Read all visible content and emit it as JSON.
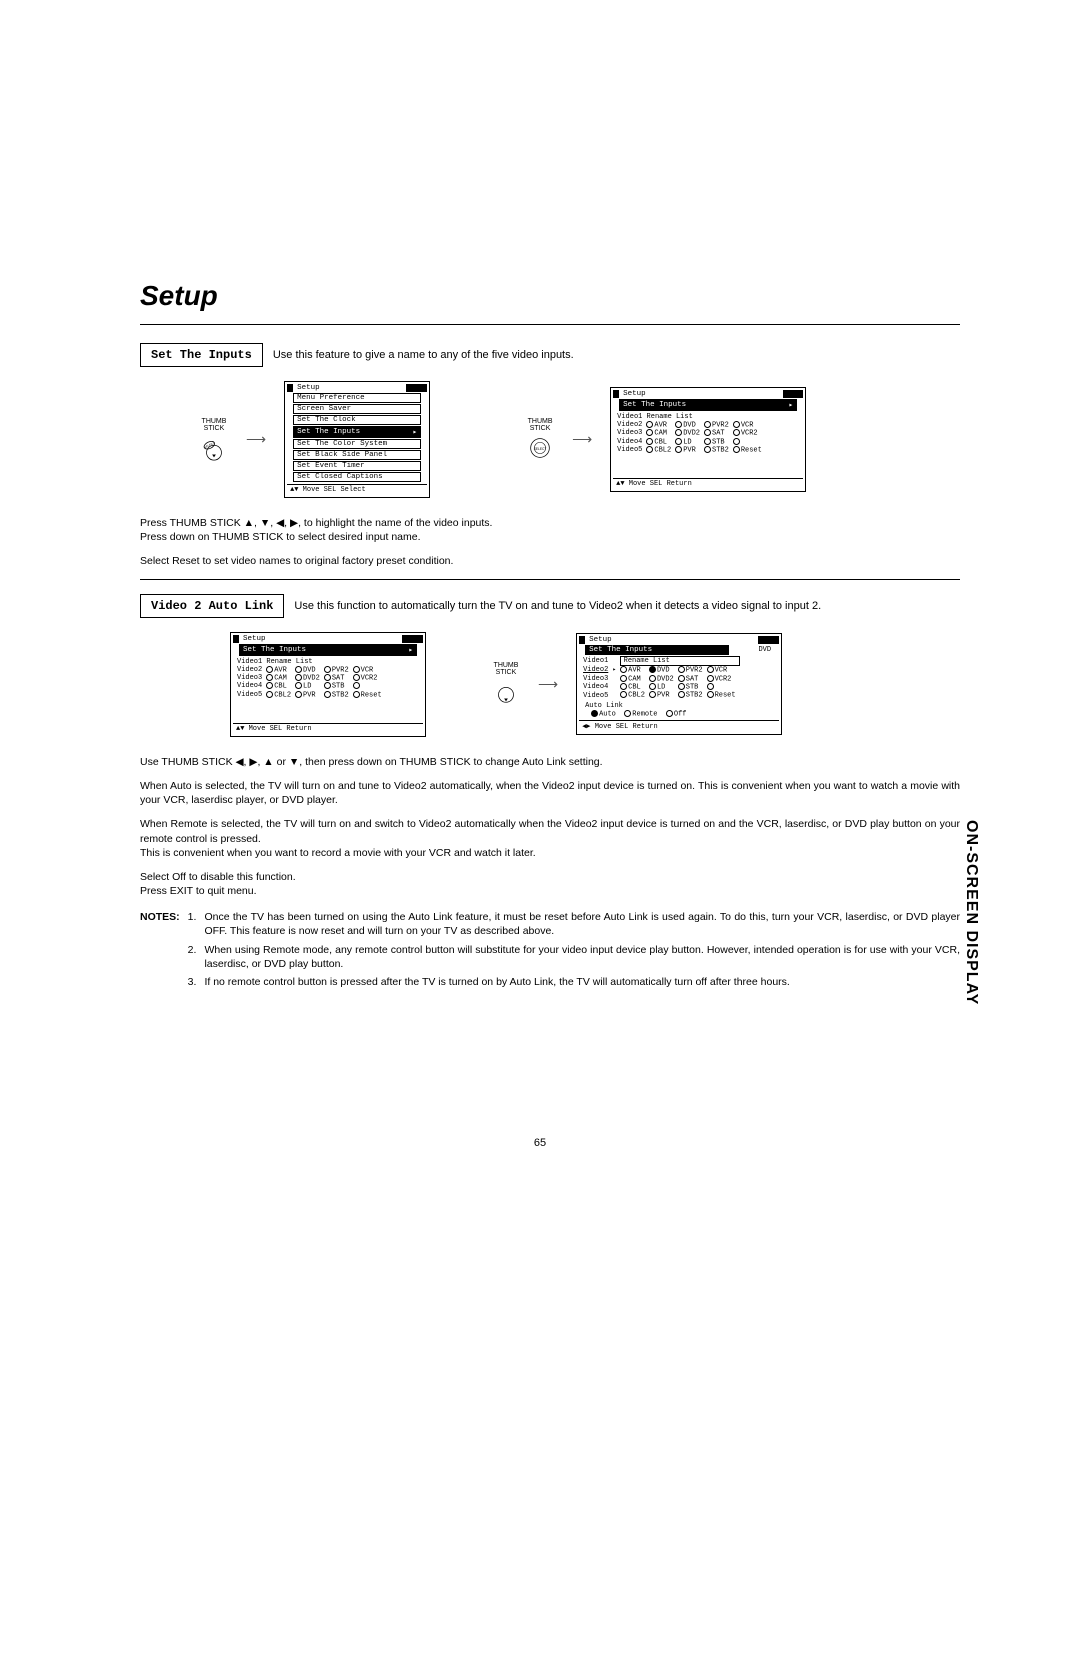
{
  "page_title": "Setup",
  "side_tab": "ON-SCREEN DISPLAY",
  "page_number": "65",
  "thumb_label": "THUMB\nSTICK",
  "arrow_glyph": "→",
  "features": {
    "set_inputs": {
      "box_label": "Set The Inputs",
      "desc": "Use this feature to give a name to any of the five video inputs."
    },
    "auto_link": {
      "box_label": "Video 2 Auto Link",
      "desc": "Use this function to automatically turn the TV on and tune to Video2 when it detects a video signal to input 2."
    }
  },
  "osd_setup_menu": {
    "title": "Setup",
    "items": [
      "Menu Preference",
      "Screen Saver",
      "Set The Clock",
      "Set The Inputs",
      "Set The Color System",
      "Set Black Side Panel",
      "Set Event Timer",
      "Set Closed Captions"
    ],
    "selected_index": 3,
    "footer": "▲▼ Move  SEL Select"
  },
  "osd_rename1": {
    "title": "Setup",
    "subtitle": "Set The Inputs",
    "header": "Video1 Rename List",
    "rows": [
      {
        "label": "Video2",
        "opts": [
          "AVR",
          "DVD",
          "PVR2",
          "VCR"
        ]
      },
      {
        "label": "Video3",
        "opts": [
          "CAM",
          "DVD2",
          "SAT",
          "VCR2"
        ]
      },
      {
        "label": "Video4",
        "opts": [
          "CBL",
          "LD",
          "STB",
          ""
        ]
      },
      {
        "label": "Video5",
        "opts": [
          "CBL2",
          "PVR",
          "STB2",
          "Reset"
        ]
      }
    ],
    "footer": "▲▼ Move  SEL Return"
  },
  "osd_rename2": {
    "title": "Setup",
    "subtitle": "Set The Inputs",
    "header": "Video1 Rename List",
    "rows": [
      {
        "label": "Video2",
        "opts": [
          "AVR",
          "DVD",
          "PVR2",
          "VCR"
        ]
      },
      {
        "label": "Video3",
        "opts": [
          "CAM",
          "DVD2",
          "SAT",
          "VCR2"
        ]
      },
      {
        "label": "Video4",
        "opts": [
          "CBL",
          "LD",
          "STB",
          ""
        ]
      },
      {
        "label": "Video5",
        "opts": [
          "CBL2",
          "PVR",
          "STB2",
          "Reset"
        ]
      }
    ],
    "footer": "▲▼ Move  SEL Return"
  },
  "osd_autolink": {
    "title": "Setup",
    "subtitle": "Set The Inputs",
    "subtitle_right": "DVD",
    "header_left": "Video1",
    "header_box": "Rename List",
    "hl_row": "Video2",
    "hl_selected": "DVD",
    "rows": [
      {
        "label": "Video2",
        "opts": [
          "AVR",
          "DVD",
          "PVR2",
          "VCR"
        ],
        "sel": 1
      },
      {
        "label": "Video3",
        "opts": [
          "CAM",
          "DVD2",
          "SAT",
          "VCR2"
        ]
      },
      {
        "label": "Video4",
        "opts": [
          "CBL",
          "LD",
          "STB",
          ""
        ]
      },
      {
        "label": "Video5",
        "opts": [
          "CBL2",
          "PVR",
          "STB2",
          "Reset"
        ]
      }
    ],
    "autolink_label": "Auto Link",
    "autolink_opts": [
      "Auto",
      "Remote",
      "Off"
    ],
    "autolink_sel": 0,
    "footer": "◀▶ Move  SEL Return"
  },
  "paragraphs": {
    "p1": "Press THUMB STICK ▲, ▼, ◀, ▶, to highlight the name of the video inputs.\nPress down on THUMB STICK to select desired input name.",
    "p2": "Select Reset to set video names to original factory preset condition.",
    "p3": "Use THUMB STICK ◀, ▶, ▲ or ▼, then press down on THUMB STICK to change Auto Link setting.",
    "p4": "When Auto is selected, the TV will turn on and tune to Video2 automatically, when the Video2 input device is turned on. This is convenient when you want to watch a movie with your VCR, laserdisc player, or DVD player.",
    "p5": "When Remote is selected, the TV will turn on and switch to Video2 automatically when the Video2 input device is turned on and the VCR, laserdisc, or DVD play button on your remote control is pressed.\nThis is convenient when you want to record a movie with your VCR and watch it later.",
    "p6": "Select Off to disable this function.\nPress EXIT to quit menu."
  },
  "notes": {
    "label": "NOTES:",
    "items": [
      "Once the TV has been turned on using the Auto Link feature, it must be reset before Auto Link is used again. To do this, turn your VCR, laserdisc, or DVD player OFF. This feature is now reset and will turn on your TV as described above.",
      "When using Remote mode, any remote control button will substitute for your video input device play button. However, intended operation is for use with your VCR, laserdisc, or DVD play button.",
      "If no remote control button is pressed after the TV is turned on by Auto Link, the TV will automatically turn off after three hours."
    ]
  },
  "colors": {
    "text": "#000000",
    "bg": "#ffffff"
  }
}
